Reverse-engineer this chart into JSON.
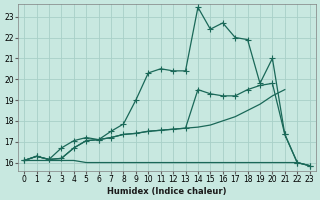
{
  "xlabel": "Humidex (Indice chaleur)",
  "bg_color": "#c8e8e0",
  "grid_color": "#a8d0c8",
  "line_color": "#1a6858",
  "xlim": [
    -0.5,
    23.5
  ],
  "ylim": [
    15.6,
    23.6
  ],
  "xticks": [
    0,
    1,
    2,
    3,
    4,
    5,
    6,
    7,
    8,
    9,
    10,
    11,
    12,
    13,
    14,
    15,
    16,
    17,
    18,
    19,
    20,
    21,
    22,
    23
  ],
  "yticks": [
    16,
    17,
    18,
    19,
    20,
    21,
    22,
    23
  ],
  "line1_x": [
    0,
    1,
    2,
    3,
    4,
    5,
    6,
    7,
    8,
    9,
    10,
    11,
    12,
    13,
    14,
    15,
    16,
    17,
    18,
    19,
    20,
    21,
    22,
    23
  ],
  "line1_y": [
    16.1,
    16.1,
    16.1,
    16.1,
    16.1,
    16.0,
    16.0,
    16.0,
    16.0,
    16.0,
    16.0,
    16.0,
    16.0,
    16.0,
    16.0,
    16.0,
    16.0,
    16.0,
    16.0,
    16.0,
    16.0,
    16.0,
    16.0,
    15.85
  ],
  "line2_x": [
    0,
    1,
    2,
    3,
    4,
    5,
    6,
    7,
    8,
    9,
    10,
    11,
    12,
    13,
    14,
    15,
    16,
    17,
    18,
    19,
    20,
    21
  ],
  "line2_y": [
    16.1,
    16.3,
    16.15,
    16.2,
    16.7,
    17.05,
    17.1,
    17.2,
    17.35,
    17.4,
    17.5,
    17.55,
    17.6,
    17.65,
    17.7,
    17.8,
    18.0,
    18.2,
    18.5,
    18.8,
    19.2,
    19.5
  ],
  "line3_x": [
    0,
    1,
    2,
    3,
    4,
    5,
    6,
    7,
    8,
    9,
    10,
    11,
    12,
    13,
    14,
    15,
    16,
    17,
    18,
    19,
    20,
    21,
    22,
    23
  ],
  "line3_y": [
    16.1,
    16.3,
    16.15,
    16.2,
    16.7,
    17.05,
    17.1,
    17.2,
    17.35,
    17.4,
    17.5,
    17.55,
    17.6,
    17.65,
    19.5,
    19.3,
    19.2,
    19.2,
    19.5,
    19.7,
    19.8,
    17.35,
    16.0,
    15.85
  ],
  "line4_x": [
    0,
    1,
    2,
    3,
    4,
    5,
    6,
    7,
    8,
    9,
    10,
    11,
    12,
    13,
    14,
    15,
    16,
    17,
    18,
    19,
    20,
    21,
    22,
    23
  ],
  "line4_y": [
    16.1,
    16.3,
    16.15,
    16.7,
    17.05,
    17.2,
    17.1,
    17.5,
    17.85,
    19.0,
    20.3,
    20.5,
    20.4,
    20.4,
    23.45,
    22.4,
    22.7,
    22.0,
    21.9,
    19.8,
    21.0,
    17.35,
    16.0,
    15.85
  ],
  "marker": "+",
  "markersize": 4,
  "linewidth": 0.9
}
